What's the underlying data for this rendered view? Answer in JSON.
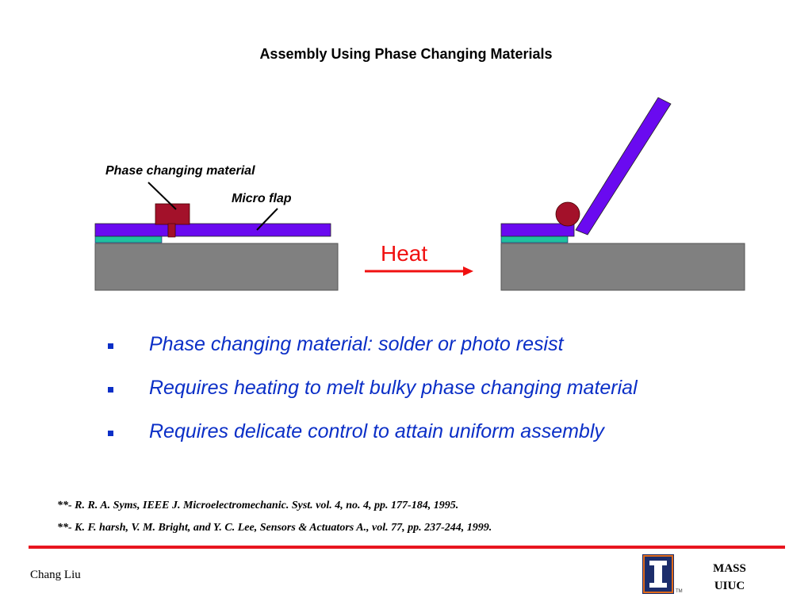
{
  "title": "Assembly Using Phase Changing Materials",
  "diagram": {
    "label_pcm": "Phase changing material",
    "label_flap": "Micro flap",
    "label_heat": "Heat",
    "colors": {
      "substrate": "#808080",
      "anchor": "#20c0a0",
      "flap": "#6a0af0",
      "pcm": "#a3112a",
      "heat": "#f01010"
    }
  },
  "bullets": [
    "Phase changing material: solder or photo resist",
    "Requires heating to melt bulky phase changing material",
    "Requires delicate control to attain uniform assembly"
  ],
  "references": [
    "**- R. R. A. Syms, IEEE J. Microelectromechanic. Syst. vol. 4, no. 4, pp. 177-184, 1995.",
    "**- K. F. harsh, V. M. Bright, and Y. C. Lee, Sensors & Actuators A., vol. 77, pp. 237-244, 1999."
  ],
  "footer": {
    "author": "Chang Liu",
    "org_line1": "MASS",
    "org_line2": "UIUC",
    "logo_tm": "TM"
  }
}
